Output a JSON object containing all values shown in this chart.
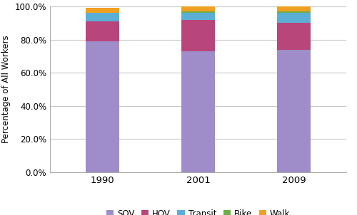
{
  "years": [
    "1990",
    "2001",
    "2009"
  ],
  "categories": [
    "SOV",
    "HOV",
    "Transit",
    "Bike",
    "Walk"
  ],
  "values": {
    "SOV": [
      79,
      73,
      74
    ],
    "HOV": [
      12,
      19,
      16
    ],
    "Transit": [
      5,
      4,
      6
    ],
    "Bike": [
      0,
      1,
      1
    ],
    "Walk": [
      3,
      3,
      3
    ]
  },
  "colors": {
    "SOV": "#9E8DC8",
    "HOV": "#B8467A",
    "Transit": "#5BAFD6",
    "Bike": "#70AD47",
    "Walk": "#F0A020"
  },
  "ylabel": "Percentage of All Workers",
  "ylim": [
    0,
    100
  ],
  "bar_width": 0.35,
  "x_positions": [
    0,
    1,
    2
  ],
  "background_color": "#FFFFFF",
  "grid_color": "#C8C8C8",
  "spine_color": "#AAAAAA",
  "figsize": [
    5.0,
    3.02
  ],
  "dpi": 100
}
